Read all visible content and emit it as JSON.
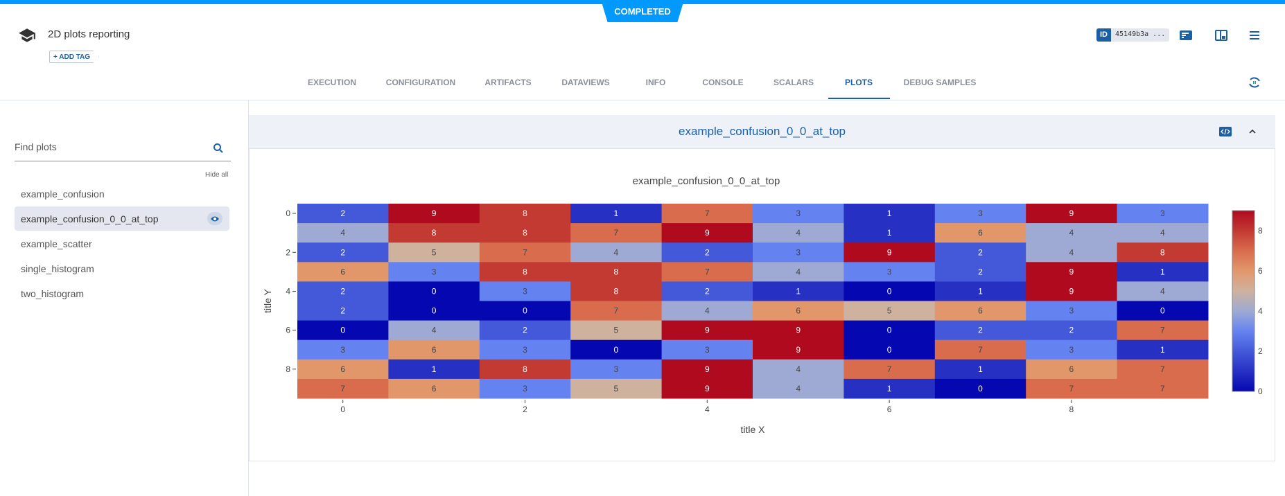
{
  "status": "COMPLETED",
  "header": {
    "title": "2D plots reporting",
    "add_tag": "+ ADD TAG",
    "id_label": "ID",
    "id_value": "45149b3a ..."
  },
  "tabs": [
    "EXECUTION",
    "CONFIGURATION",
    "ARTIFACTS",
    "DATAVIEWS",
    "INFO",
    "CONSOLE",
    "SCALARS",
    "PLOTS",
    "DEBUG SAMPLES"
  ],
  "active_tab": "PLOTS",
  "sidebar": {
    "search_placeholder": "Find plots",
    "hide_all": "Hide all",
    "items": [
      "example_confusion",
      "example_confusion_0_0_at_top",
      "example_scatter",
      "single_histogram",
      "two_histogram"
    ],
    "selected": "example_confusion_0_0_at_top"
  },
  "panel": {
    "title": "example_confusion_0_0_at_top"
  },
  "colors": {
    "accent": "#1d5fa5",
    "status": "#0099ff"
  },
  "chart_data": {
    "type": "heatmap",
    "title": "example_confusion_0_0_at_top",
    "xlabel": "title X",
    "ylabel": "title Y",
    "x_ticks": [
      0,
      2,
      4,
      6,
      8
    ],
    "y_ticks": [
      0,
      2,
      4,
      6,
      8
    ],
    "y_axis_order": "0 at top",
    "colorscale": "coolwarm (blue low, red high)",
    "colorbar_ticks": [
      0,
      2,
      4,
      6,
      8
    ],
    "zlim": [
      0,
      9
    ],
    "z": [
      [
        2,
        9,
        8,
        1,
        7,
        3,
        1,
        3,
        9,
        3
      ],
      [
        4,
        8,
        8,
        7,
        9,
        4,
        1,
        6,
        4,
        4
      ],
      [
        2,
        5,
        7,
        4,
        2,
        3,
        9,
        2,
        4,
        8
      ],
      [
        6,
        3,
        8,
        8,
        7,
        4,
        3,
        2,
        9,
        1
      ],
      [
        2,
        0,
        3,
        8,
        2,
        1,
        0,
        1,
        9,
        4
      ],
      [
        2,
        0,
        0,
        7,
        4,
        6,
        5,
        6,
        3,
        0
      ],
      [
        0,
        4,
        2,
        5,
        9,
        9,
        0,
        2,
        2,
        7
      ],
      [
        3,
        6,
        3,
        0,
        3,
        9,
        0,
        7,
        3,
        1
      ],
      [
        6,
        1,
        8,
        3,
        9,
        4,
        7,
        1,
        6,
        7
      ],
      [
        7,
        6,
        3,
        5,
        9,
        4,
        1,
        0,
        7,
        7
      ]
    ]
  }
}
